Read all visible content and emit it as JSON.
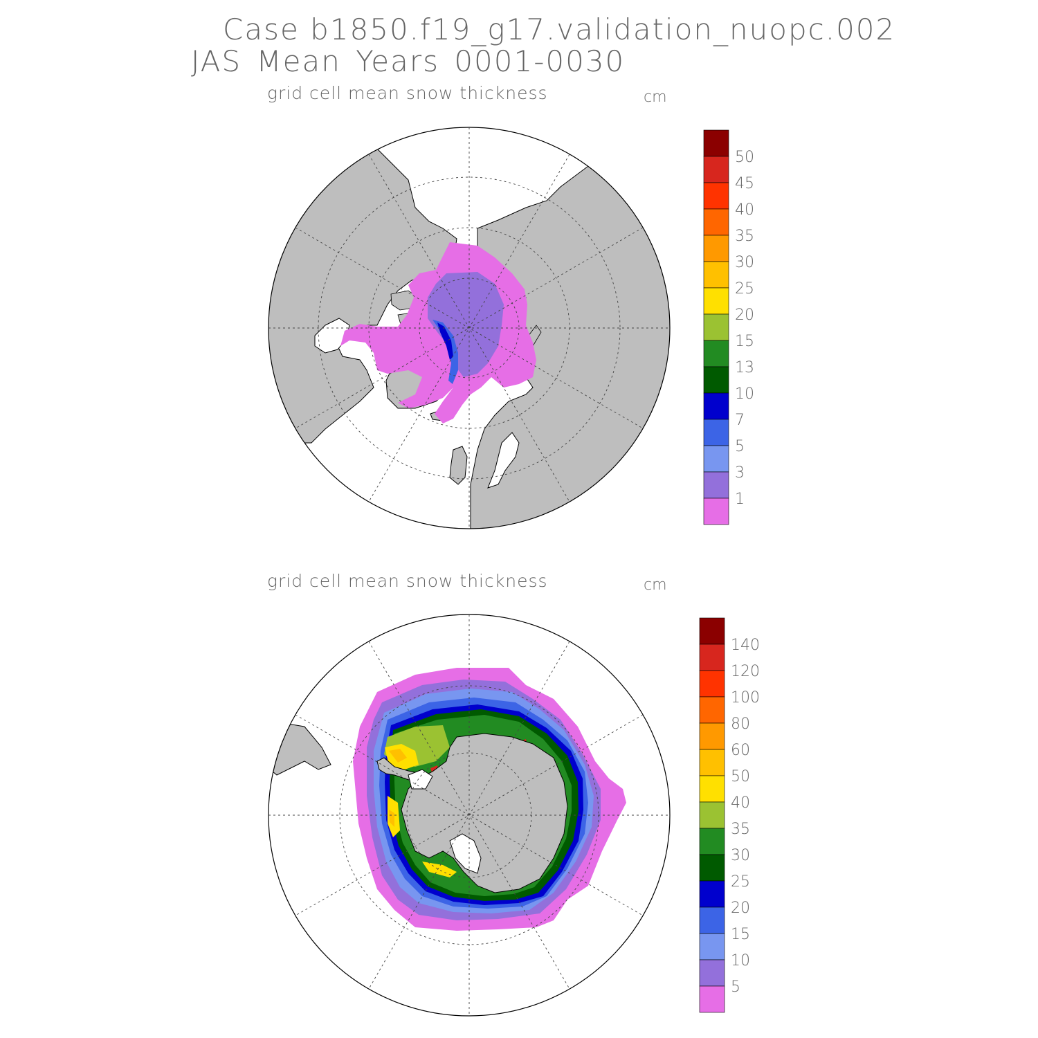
{
  "title": {
    "line1": "Case b1850.f19_g17.validation_nuopc.002",
    "line2": "JAS Mean    Years 0001-0030"
  },
  "panels": [
    {
      "hemisphere": "north",
      "field": "grid cell mean snow thickness",
      "units": "cm",
      "colorbar": {
        "levels": [
          "50",
          "45",
          "40",
          "35",
          "30",
          "25",
          "20",
          "15",
          "13",
          "10",
          "7",
          "5",
          "3",
          "1"
        ],
        "colors": [
          "#8b0000",
          "#d7261e",
          "#ff3300",
          "#ff6600",
          "#ff9900",
          "#ffc000",
          "#ffe000",
          "#9bc232",
          "#228b22",
          "#005a00",
          "#0000cd",
          "#3c64e6",
          "#7896f0",
          "#9370db",
          "#e66ee6"
        ]
      }
    },
    {
      "hemisphere": "south",
      "field": "grid cell mean snow thickness",
      "units": "cm",
      "colorbar": {
        "levels": [
          "140",
          "120",
          "100",
          "80",
          "60",
          "50",
          "40",
          "35",
          "30",
          "25",
          "20",
          "15",
          "10",
          "5"
        ],
        "colors": [
          "#8b0000",
          "#d7261e",
          "#ff3300",
          "#ff6600",
          "#ff9900",
          "#ffc000",
          "#ffe000",
          "#9bc232",
          "#228b22",
          "#005a00",
          "#0000cd",
          "#3c64e6",
          "#7896f0",
          "#9370db",
          "#e66ee6"
        ]
      }
    }
  ],
  "colors": {
    "land": "#bebebe",
    "ocean": "#ffffff",
    "coast": "#000000"
  }
}
